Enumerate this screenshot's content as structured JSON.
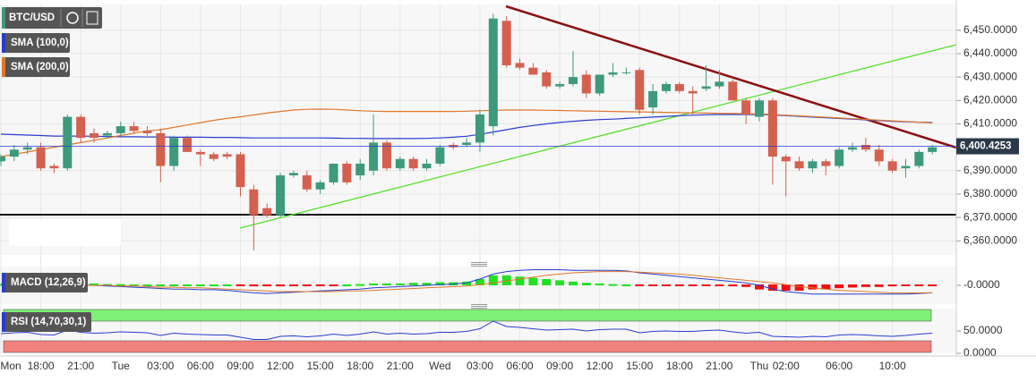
{
  "chart_data": [
    {
      "type": "candlestick",
      "title": "BTC/USD",
      "categories": [
        "Mon",
        null,
        null,
        "18:00",
        null,
        null,
        "21:00",
        null,
        null,
        "Tue",
        null,
        null,
        "03:00",
        null,
        null,
        "06:00",
        null,
        null,
        "09:00",
        null,
        null,
        "12:00",
        null,
        null,
        "15:00",
        null,
        null,
        "18:00",
        null,
        null,
        "21:00",
        null,
        null,
        "Wed",
        null,
        null,
        "03:00",
        null,
        null,
        "06:00",
        null,
        null,
        "09:00",
        null,
        null,
        "12:00",
        null,
        null,
        "15:00",
        null,
        null,
        "18:00",
        null,
        null,
        "21:00",
        null,
        null,
        "Thu",
        null,
        "02:00",
        null,
        null,
        null,
        "06:00",
        null,
        null,
        null,
        "10:00",
        null,
        null,
        null
      ],
      "open": [
        6394,
        6396,
        6399,
        6400,
        6392,
        6391,
        6413,
        6406,
        6405,
        6406,
        6409,
        6407,
        6406,
        6392,
        6404,
        6398,
        6397,
        6397,
        6397,
        6382,
        6374,
        6371,
        6388,
        6388,
        6382,
        6385,
        6393,
        6388,
        6390,
        6402,
        6391,
        6395,
        6391,
        6393,
        6401,
        6401,
        6402,
        6409,
        6454,
        6436,
        6434,
        6432,
        6426,
        6427,
        6431,
        6423,
        6431,
        6432,
        6433,
        6417,
        6424,
        6427,
        6424,
        6425,
        6426,
        6428,
        6420,
        6413,
        6420,
        6396,
        6394,
        6391,
        6394,
        6392,
        6399,
        6401,
        6399,
        6394,
        6391,
        6392,
        6398
      ],
      "high": [
        6397,
        6401,
        6402,
        6402,
        6393,
        6414,
        6414,
        6408,
        6407,
        6411,
        6411,
        6409,
        6408,
        6405,
        6405,
        6399,
        6398,
        6398,
        6398,
        6384,
        6376,
        6389,
        6390,
        6390,
        6386,
        6393,
        6394,
        6395,
        6414,
        6403,
        6396,
        6396,
        6395,
        6401,
        6402,
        6404,
        6416,
        6457,
        6456,
        6438,
        6436,
        6433,
        6428,
        6441,
        6433,
        6431,
        6436,
        6434,
        6434,
        6427,
        6428,
        6428,
        6426,
        6435,
        6433,
        6429,
        6421,
        6421,
        6421,
        6397,
        6396,
        6395,
        6395,
        6400,
        6402,
        6404,
        6401,
        6395,
        6395,
        6399,
        6401
      ],
      "low": [
        6392,
        6394,
        6397,
        6390,
        6389,
        6390,
        6402,
        6402,
        6404,
        6405,
        6406,
        6405,
        6385,
        6390,
        6398,
        6392,
        6394,
        6395,
        6379,
        6356,
        6370,
        6370,
        6387,
        6381,
        6380,
        6384,
        6384,
        6386,
        6388,
        6390,
        6390,
        6390,
        6390,
        6392,
        6399,
        6400,
        6398,
        6405,
        6434,
        6433,
        6431,
        6425,
        6425,
        6426,
        6421,
        6422,
        6430,
        6431,
        6414,
        6414,
        6423,
        6423,
        6414,
        6424,
        6425,
        6420,
        6410,
        6411,
        6384,
        6379,
        6390,
        6389,
        6388,
        6391,
        6398,
        6398,
        6392,
        6389,
        6387,
        6391,
        6397
      ],
      "close": [
        6396,
        6399,
        6400,
        6391,
        6391,
        6413,
        6404,
        6404,
        6406,
        6409,
        6407,
        6406,
        6392,
        6404,
        6398,
        6397,
        6395,
        6396,
        6383,
        6371,
        6371,
        6388,
        6389,
        6382,
        6385,
        6393,
        6385,
        6393,
        6402,
        6391,
        6395,
        6391,
        6393,
        6400,
        6400,
        6402,
        6414,
        6455,
        6435,
        6434,
        6431,
        6426,
        6427,
        6430,
        6423,
        6431,
        6432,
        6432,
        6416,
        6424,
        6427,
        6424,
        6423,
        6426,
        6428,
        6420,
        6414,
        6420,
        6396,
        6394,
        6391,
        6394,
        6392,
        6399,
        6400,
        6399,
        6394,
        6390,
        6392,
        6398,
        6400
      ],
      "up_color": "#3d9a7c",
      "down_color": "#d4604f",
      "series": [
        {
          "name": "SMA (100,0)",
          "color": "#2a3bd0",
          "values": [
            6405.6,
            6405.4,
            6405.2,
            6405,
            6404.8,
            6404.8,
            6404.8,
            6404.7,
            6404.6,
            6404.5,
            6404.5,
            6404.4,
            6404.4,
            6404.3,
            6404.3,
            6404.3,
            6404.2,
            6404.2,
            6404.1,
            6404,
            6404,
            6404,
            6404,
            6404,
            6404,
            6403.9,
            6403.8,
            6403.8,
            6403.7,
            6403.7,
            6403.7,
            6403.7,
            6403.8,
            6404,
            6404.3,
            6404.7,
            6405.5,
            6406.5,
            6407.5,
            6408.5,
            6409.3,
            6410,
            6410.6,
            6411.1,
            6411.5,
            6411.8,
            6412,
            6412.3,
            6412.6,
            6412.9,
            6413.2,
            6413.5,
            6413.7,
            6413.9,
            6414,
            6414,
            6414,
            6414,
            6413.8,
            6413.5,
            6413.2,
            6412.9,
            6412.6,
            6412.3,
            6412,
            6411.7,
            6411.4,
            6411.1,
            6410.9,
            6410.7,
            6410.6
          ]
        },
        {
          "name": "SMA (200,0)",
          "color": "#e0772a",
          "values": [
            6396,
            6397,
            6398,
            6399,
            6400,
            6401,
            6402,
            6403,
            6404,
            6405,
            6406,
            6407,
            6407.5,
            6408.5,
            6409.5,
            6410.5,
            6411.5,
            6412.3,
            6413,
            6413.8,
            6414.6,
            6415.3,
            6415.9,
            6416.2,
            6416.3,
            6416.2,
            6415.9,
            6415.6,
            6415.4,
            6415.3,
            6415.3,
            6415.3,
            6415.3,
            6415.3,
            6415.3,
            6415.4,
            6415.6,
            6415.8,
            6415.9,
            6415.9,
            6415.9,
            6415.8,
            6415.7,
            6415.6,
            6415.5,
            6415.4,
            6415.3,
            6415.2,
            6415.1,
            6415,
            6414.9,
            6414.8,
            6414.7,
            6414.6,
            6414.5,
            6414.4,
            6414.3,
            6414.2,
            6414,
            6413.7,
            6413.4,
            6413.1,
            6412.8,
            6412.5,
            6412.2,
            6411.9,
            6411.6,
            6411.3,
            6411,
            6410.7,
            6410.4
          ]
        }
      ],
      "ylim": [
        6354,
        6461
      ],
      "yticks": [
        {
          "value": 6450,
          "label": "6,450.0000"
        },
        {
          "value": 6440,
          "label": "6,440.0000"
        },
        {
          "value": 6430,
          "label": "6,430.0000"
        },
        {
          "value": 6420,
          "label": "6,420.0000"
        },
        {
          "value": 6410,
          "label": "6,410.0000"
        },
        {
          "value": 6390,
          "label": "6,390.0000"
        },
        {
          "value": 6380,
          "label": "6,380.0000"
        },
        {
          "value": 6370,
          "label": "6,370.0000"
        },
        {
          "value": 6360,
          "label": "6,360.0000"
        }
      ],
      "last_price": {
        "value": 6400.4253,
        "label": "6,400.4253"
      },
      "grid": true
    },
    {
      "type": "macd",
      "title": "MACD (12,26,9)",
      "histogram": {
        "up_color": "#22e022",
        "down_color": "#ee1111",
        "values": [
          1,
          1,
          1,
          1,
          1,
          1.5,
          1.5,
          1.5,
          1,
          1,
          0.5,
          0.5,
          0.5,
          0.3,
          0.3,
          0.2,
          0.2,
          0.1,
          -1,
          -1.5,
          -1.5,
          -1.5,
          -1,
          -1,
          -0.5,
          -0.3,
          0.5,
          1,
          1.5,
          1.5,
          1.5,
          2,
          2,
          2.5,
          2.5,
          3,
          5,
          8,
          8,
          7,
          6,
          5,
          4,
          3,
          2,
          1.5,
          1,
          0.5,
          -0.5,
          -1,
          -1,
          -1,
          -1,
          -1,
          -1,
          -1.5,
          -2,
          -4,
          -5,
          -5,
          -5,
          -4,
          -4,
          -3,
          -2.5,
          -2,
          -2,
          -1.5,
          -1,
          -1,
          -0.5
        ]
      },
      "series": [
        {
          "color": "#2a3bd0",
          "values": [
            1,
            1,
            0.5,
            0,
            -0.5,
            0,
            0.5,
            0,
            -0.5,
            -1,
            -1.5,
            -2,
            -2.5,
            -3,
            -3,
            -3.5,
            -3.5,
            -4,
            -5,
            -6,
            -6.5,
            -6,
            -5.5,
            -5,
            -4.5,
            -4,
            -3.5,
            -3,
            -2,
            -1.5,
            -1,
            -0.5,
            0,
            0.5,
            1,
            2,
            5,
            9,
            11,
            12,
            12.5,
            12.5,
            12.5,
            12,
            12,
            12,
            12,
            11.5,
            10,
            9,
            8,
            7,
            6,
            5,
            4,
            3,
            2,
            0,
            -3,
            -5,
            -6,
            -7,
            -7,
            -7,
            -7,
            -7,
            -7,
            -7,
            -7,
            -6.5,
            -6
          ]
        },
        {
          "color": "#e0772a",
          "values": [
            0,
            0,
            0,
            0,
            0,
            0,
            0,
            0,
            0,
            -0.5,
            -0.5,
            -1,
            -1.5,
            -1.5,
            -2,
            -2,
            -2.5,
            -3,
            -3.5,
            -4,
            -4.5,
            -5,
            -5,
            -5,
            -5,
            -5,
            -4.5,
            -4.5,
            -4,
            -3.5,
            -3,
            -2.5,
            -2,
            -1.5,
            -1,
            -0.5,
            0.5,
            2,
            3.5,
            5,
            6.5,
            8,
            9,
            10,
            10.5,
            11,
            11,
            11,
            10.5,
            10,
            9.5,
            9,
            8,
            7,
            6,
            5,
            4,
            3,
            2,
            0.5,
            -1,
            -2,
            -3,
            -4,
            -4.5,
            -5,
            -5.5,
            -6,
            -6,
            -6,
            -6
          ]
        }
      ],
      "ylim": [
        -15,
        15
      ],
      "yticks": [
        {
          "value": 0,
          "label": "-0.0000"
        }
      ]
    },
    {
      "type": "rsi",
      "title": "RSI (14,70,30,1)",
      "color": "#2a3bd0",
      "values": [
        44,
        46,
        47,
        42,
        41,
        52,
        47,
        45,
        46,
        48,
        47,
        46,
        40,
        45,
        43,
        42,
        41,
        41,
        36,
        31,
        31,
        38,
        39,
        37,
        39,
        43,
        40,
        43,
        48,
        43,
        45,
        43,
        44,
        47,
        47,
        49,
        55,
        72,
        60,
        58,
        55,
        52,
        53,
        54,
        50,
        53,
        54,
        54,
        46,
        49,
        50,
        49,
        49,
        51,
        52,
        48,
        45,
        47,
        38,
        37,
        36,
        38,
        37,
        41,
        42,
        41,
        39,
        38,
        40,
        43,
        45
      ],
      "bands": [
        {
          "from": 70,
          "to": 100,
          "color": "#7ff07a"
        },
        {
          "from": 0,
          "to": 30,
          "color": "#f2807c"
        }
      ],
      "ylim": [
        0,
        100
      ],
      "yticks": [
        {
          "value": 50,
          "label": "50.0000"
        },
        {
          "value": 0,
          "label": "0.0000"
        }
      ]
    }
  ]
}
